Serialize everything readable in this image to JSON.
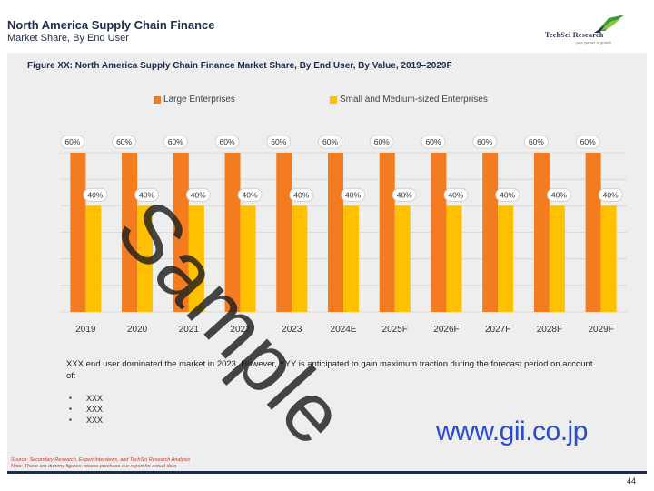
{
  "header": {
    "title": "North America Supply Chain Finance",
    "subtitle": "Market Share, By End User"
  },
  "logo": {
    "name": "TechSci Research",
    "tagline": "your partner in growth"
  },
  "figure_title": "Figure XX: North America Supply Chain Finance Market Share, By End User, By Value, 2019–2029F",
  "colors": {
    "large": "#f47c20",
    "small": "#ffc000",
    "panel": "#eeeeee",
    "navy": "#1e2b4a"
  },
  "chart_data": {
    "type": "bar",
    "title": "Figure XX: North America Supply Chain Finance Market Share, By End User, By Value, 2019–2029F",
    "categories": [
      "2019",
      "2020",
      "2021",
      "2022",
      "2023",
      "2024E",
      "2025F",
      "2026F",
      "2027F",
      "2028F",
      "2029F"
    ],
    "series": [
      {
        "name": "Large Enterprises",
        "values": [
          60,
          60,
          60,
          60,
          60,
          60,
          60,
          60,
          60,
          60,
          60
        ],
        "labels": [
          "60%",
          "60%",
          "60%",
          "60%",
          "60%",
          "60%",
          "60%",
          "60%",
          "60%",
          "60%",
          "60%"
        ]
      },
      {
        "name": "Small and Medium-sized Enterprises",
        "values": [
          40,
          40,
          40,
          40,
          40,
          40,
          40,
          40,
          40,
          40,
          40
        ],
        "labels": [
          "40%",
          "40%",
          "40%",
          "40%",
          "40%",
          "40%",
          "40%",
          "40%",
          "40%",
          "40%",
          "40%"
        ]
      }
    ],
    "unit": "%",
    "ylim": [
      0,
      60
    ],
    "legend": "top",
    "grid": true,
    "xlabel": "",
    "ylabel": ""
  },
  "body_text": "XXX end user dominated the market in 2023. However, YYY is anticipated to gain maximum traction during the forecast period on account of:",
  "bullets": [
    "XXX",
    "XXX",
    "XXX"
  ],
  "site_url": "www.gii.co.jp",
  "source_line": "Source: Secondary Research, Expert Interviews, and TechSci Research Analysis",
  "note_line": "Note: These are dummy figures; please purchase our report for actual data",
  "page_number": "44",
  "watermark": "Sample"
}
